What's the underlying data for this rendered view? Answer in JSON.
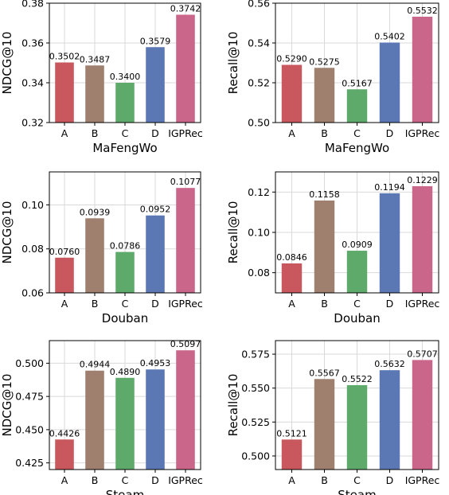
{
  "chart_data": [
    {
      "type": "bar",
      "categories": [
        "A",
        "B",
        "C",
        "D",
        "IGPRec"
      ],
      "values": [
        0.3502,
        0.3487,
        0.34,
        0.3579,
        0.3742
      ],
      "value_labels": [
        "0.3502",
        "0.3487",
        "0.3400",
        "0.3579",
        "0.3742"
      ],
      "xlabel": "MaFengWo",
      "ylabel": "NDCG@10",
      "ylim": [
        0.32,
        0.38
      ],
      "yticks": [
        0.32,
        0.34,
        0.36,
        0.38
      ],
      "ytick_labels": [
        "0.32",
        "0.34",
        "0.36",
        "0.38"
      ],
      "grid": true
    },
    {
      "type": "bar",
      "categories": [
        "A",
        "B",
        "C",
        "D",
        "IGPRec"
      ],
      "values": [
        0.529,
        0.5275,
        0.5167,
        0.5402,
        0.5532
      ],
      "value_labels": [
        "0.5290",
        "0.5275",
        "0.5167",
        "0.5402",
        "0.5532"
      ],
      "xlabel": "MaFengWo",
      "ylabel": "Recall@10",
      "ylim": [
        0.5,
        0.56
      ],
      "yticks": [
        0.5,
        0.52,
        0.54,
        0.56
      ],
      "ytick_labels": [
        "0.50",
        "0.52",
        "0.54",
        "0.56"
      ],
      "grid": true
    },
    {
      "type": "bar",
      "categories": [
        "A",
        "B",
        "C",
        "D",
        "IGPRec"
      ],
      "values": [
        0.076,
        0.0939,
        0.0786,
        0.0952,
        0.1077
      ],
      "value_labels": [
        "0.0760",
        "0.0939",
        "0.0786",
        "0.0952",
        "0.1077"
      ],
      "xlabel": "Douban",
      "ylabel": "NDCG@10",
      "ylim": [
        0.06,
        0.115
      ],
      "yticks": [
        0.06,
        0.08,
        0.1
      ],
      "ytick_labels": [
        "0.06",
        "0.08",
        "0.10"
      ],
      "grid": true
    },
    {
      "type": "bar",
      "categories": [
        "A",
        "B",
        "C",
        "D",
        "IGPRec"
      ],
      "values": [
        0.0846,
        0.1158,
        0.0909,
        0.1194,
        0.1229
      ],
      "value_labels": [
        "0.0846",
        "0.1158",
        "0.0909",
        "0.1194",
        "0.1229"
      ],
      "xlabel": "Douban",
      "ylabel": "Recall@10",
      "ylim": [
        0.07,
        0.13
      ],
      "yticks": [
        0.08,
        0.1,
        0.12
      ],
      "ytick_labels": [
        "0.08",
        "0.10",
        "0.12"
      ],
      "grid": true
    },
    {
      "type": "bar",
      "categories": [
        "A",
        "B",
        "C",
        "D",
        "IGPRec"
      ],
      "values": [
        0.4426,
        0.4944,
        0.489,
        0.4953,
        0.5097
      ],
      "value_labels": [
        "0.4426",
        "0.4944",
        "0.4890",
        "0.4953",
        "0.5097"
      ],
      "xlabel": "Steam",
      "ylabel": "NDCG@10",
      "ylim": [
        0.42,
        0.517
      ],
      "yticks": [
        0.425,
        0.45,
        0.475,
        0.5
      ],
      "ytick_labels": [
        "0.425",
        "0.450",
        "0.475",
        "0.500"
      ],
      "grid": true
    },
    {
      "type": "bar",
      "categories": [
        "A",
        "B",
        "C",
        "D",
        "IGPRec"
      ],
      "values": [
        0.5121,
        0.5567,
        0.5522,
        0.5632,
        0.5707
      ],
      "value_labels": [
        "0.5121",
        "0.5567",
        "0.5522",
        "0.5632",
        "0.5707"
      ],
      "xlabel": "Steam",
      "ylabel": "Recall@10",
      "ylim": [
        0.49,
        0.585
      ],
      "yticks": [
        0.5,
        0.525,
        0.55,
        0.575
      ],
      "ytick_labels": [
        "0.500",
        "0.525",
        "0.550",
        "0.575"
      ],
      "grid": true
    }
  ],
  "bar_colors": [
    "#c8575e",
    "#9f7f6e",
    "#5daa6b",
    "#5b77b4",
    "#c9668a"
  ],
  "axis_color": "#000000",
  "grid_color": "#d9d9d9"
}
